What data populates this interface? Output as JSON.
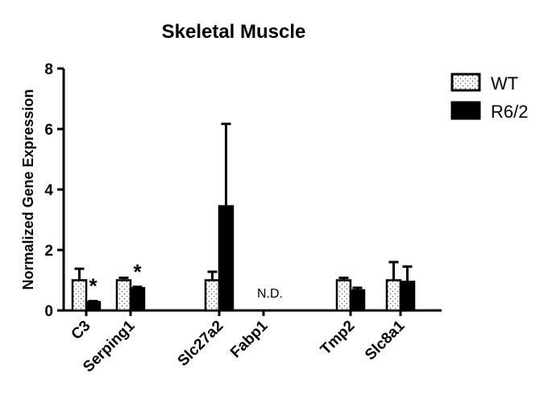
{
  "chart_data": {
    "type": "bar",
    "title": "Skeletal Muscle",
    "ylabel": "Normalized Gene Expression",
    "xlabel": "",
    "ylim": [
      0,
      8
    ],
    "yticks": [
      0,
      2,
      4,
      6,
      8
    ],
    "categories": [
      "C3",
      "Serping1",
      "Slc27a2",
      "Fabp1",
      "Tmp2",
      "Slc8a1"
    ],
    "series": [
      {
        "name": "WT",
        "pattern": "dotted",
        "values": [
          1.0,
          1.0,
          1.0,
          null,
          1.0,
          1.0
        ],
        "errors": [
          0.38,
          0.08,
          0.28,
          null,
          0.08,
          0.6
        ]
      },
      {
        "name": "R6/2",
        "pattern": "solid",
        "values": [
          0.28,
          0.74,
          3.45,
          null,
          0.67,
          0.95
        ],
        "errors": [
          0.03,
          0.04,
          2.72,
          null,
          0.08,
          0.5
        ]
      }
    ],
    "annotations": [
      {
        "category": "C3",
        "text": "*"
      },
      {
        "category": "Serping1",
        "text": "*"
      },
      {
        "category": "Fabp1",
        "text": "N.D."
      }
    ],
    "legend_position": "top-right",
    "grid": false
  }
}
